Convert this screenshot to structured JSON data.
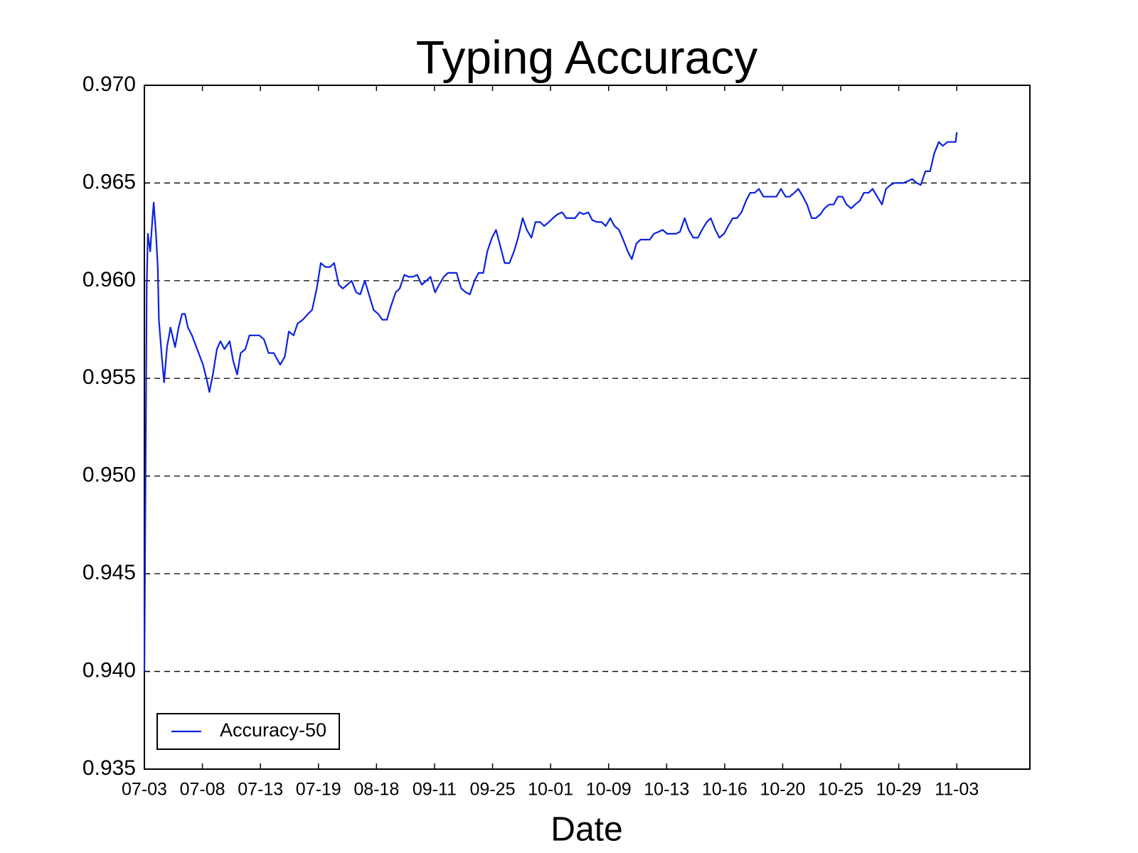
{
  "chart_data": {
    "type": "line",
    "title": "Typing Accuracy",
    "x_label": "Date",
    "xlim": [
      0,
      1526
    ],
    "xticks": [
      {
        "value": 0,
        "label": "07-03"
      },
      {
        "value": 100,
        "label": "07-08"
      },
      {
        "value": 200,
        "label": "07-13"
      },
      {
        "value": 300,
        "label": "07-19"
      },
      {
        "value": 400,
        "label": "08-18"
      },
      {
        "value": 500,
        "label": "09-11"
      },
      {
        "value": 600,
        "label": "09-25"
      },
      {
        "value": 700,
        "label": "10-01"
      },
      {
        "value": 800,
        "label": "10-09"
      },
      {
        "value": 900,
        "label": "10-13"
      },
      {
        "value": 1000,
        "label": "10-16"
      },
      {
        "value": 1100,
        "label": "10-20"
      },
      {
        "value": 1200,
        "label": "10-25"
      },
      {
        "value": 1300,
        "label": "10-29"
      },
      {
        "value": 1400,
        "label": "11-03"
      }
    ],
    "ylim": [
      0.935,
      0.97
    ],
    "yticks": [
      0.935,
      {
        "value": 0.94,
        "label": "0.940"
      },
      0.945,
      {
        "value": 0.95,
        "label": "0.950"
      },
      0.955,
      {
        "value": 0.96,
        "label": "0.960"
      },
      0.965,
      {
        "value": 0.97,
        "label": "0.970"
      }
    ],
    "grid": true,
    "legend": "lower left",
    "x": [
      0,
      4,
      6,
      10,
      14,
      16,
      20,
      23,
      25,
      30,
      34,
      39,
      45,
      53,
      59,
      65,
      70,
      75,
      82,
      91,
      101,
      107,
      112,
      118,
      125,
      131,
      138,
      147,
      153,
      160,
      166,
      174,
      181,
      189,
      198,
      206,
      214,
      223,
      234,
      242,
      249,
      257,
      264,
      273,
      282,
      289,
      297,
      304,
      312,
      320,
      327,
      335,
      342,
      350,
      357,
      365,
      372,
      380,
      387,
      395,
      403,
      410,
      418,
      425,
      433,
      440,
      448,
      455,
      463,
      470,
      478,
      486,
      493,
      501,
      508,
      516,
      523,
      531,
      538,
      546,
      554,
      561,
      569,
      576,
      584,
      591,
      599,
      606,
      614,
      621,
      629,
      637,
      644,
      652,
      659,
      667,
      674,
      682,
      689,
      697,
      704,
      712,
      720,
      727,
      735,
      742,
      750,
      757,
      765,
      772,
      780,
      788,
      795,
      803,
      810,
      818,
      825,
      833,
      840,
      848,
      855,
      863,
      871,
      878,
      886,
      893,
      901,
      908,
      916,
      923,
      931,
      938,
      946,
      954,
      961,
      969,
      976,
      984,
      991,
      999,
      1006,
      1014,
      1021,
      1029,
      1037,
      1044,
      1052,
      1059,
      1067,
      1074,
      1082,
      1089,
      1097,
      1105,
      1112,
      1120,
      1127,
      1135,
      1142,
      1150,
      1157,
      1165,
      1172,
      1180,
      1188,
      1195,
      1203,
      1210,
      1218,
      1225,
      1233,
      1240,
      1248,
      1255,
      1263,
      1271,
      1278,
      1286,
      1293,
      1301,
      1308,
      1316,
      1323,
      1331,
      1338,
      1346,
      1354,
      1361,
      1369,
      1376,
      1384,
      1391,
      1398,
      1400
    ],
    "series": [
      {
        "name": "Accuracy-50",
        "color": "#0a22e0",
        "values": [
          0.94,
          0.9598,
          0.9624,
          0.9615,
          0.9632,
          0.964,
          0.9624,
          0.9607,
          0.958,
          0.9561,
          0.9548,
          0.9566,
          0.9576,
          0.9566,
          0.9576,
          0.9583,
          0.9583,
          0.9576,
          0.9572,
          0.9565,
          0.9557,
          0.955,
          0.9543,
          0.9552,
          0.9565,
          0.9569,
          0.9565,
          0.9569,
          0.9559,
          0.9552,
          0.9563,
          0.9565,
          0.9572,
          0.9572,
          0.9572,
          0.957,
          0.9563,
          0.9563,
          0.9557,
          0.9561,
          0.9574,
          0.9572,
          0.9578,
          0.958,
          0.9583,
          0.9585,
          0.9596,
          0.9609,
          0.9607,
          0.9607,
          0.9609,
          0.9598,
          0.9596,
          0.9598,
          0.96,
          0.9594,
          0.9593,
          0.96,
          0.9593,
          0.9585,
          0.9583,
          0.958,
          0.958,
          0.9587,
          0.9594,
          0.9596,
          0.9603,
          0.9602,
          0.9602,
          0.9603,
          0.9598,
          0.96,
          0.9602,
          0.9594,
          0.9598,
          0.9602,
          0.9604,
          0.9604,
          0.9604,
          0.9596,
          0.9594,
          0.9593,
          0.96,
          0.9604,
          0.9604,
          0.9615,
          0.9622,
          0.9626,
          0.9617,
          0.9609,
          0.9609,
          0.9615,
          0.9622,
          0.9632,
          0.9626,
          0.9622,
          0.963,
          0.963,
          0.9628,
          0.963,
          0.9632,
          0.9634,
          0.9635,
          0.9632,
          0.9632,
          0.9632,
          0.9635,
          0.9634,
          0.9635,
          0.9631,
          0.963,
          0.963,
          0.9628,
          0.9632,
          0.9628,
          0.9626,
          0.9621,
          0.9615,
          0.9611,
          0.9619,
          0.9621,
          0.9621,
          0.9621,
          0.9624,
          0.9625,
          0.9626,
          0.9624,
          0.9624,
          0.9624,
          0.9625,
          0.9632,
          0.9626,
          0.9622,
          0.9622,
          0.9626,
          0.963,
          0.9632,
          0.9626,
          0.9622,
          0.9624,
          0.9628,
          0.9632,
          0.9632,
          0.9635,
          0.9641,
          0.9645,
          0.9645,
          0.9647,
          0.9643,
          0.9643,
          0.9643,
          0.9643,
          0.9647,
          0.9643,
          0.9643,
          0.9645,
          0.9647,
          0.9643,
          0.9639,
          0.9632,
          0.9632,
          0.9634,
          0.9637,
          0.9639,
          0.9639,
          0.9643,
          0.9643,
          0.9639,
          0.9637,
          0.9639,
          0.9641,
          0.9645,
          0.9645,
          0.9647,
          0.9643,
          0.9639,
          0.9647,
          0.9649,
          0.965,
          0.965,
          0.965,
          0.9651,
          0.9652,
          0.965,
          0.9649,
          0.9656,
          0.9656,
          0.9665,
          0.9671,
          0.9669,
          0.9671,
          0.9671,
          0.9671,
          0.9676
        ]
      }
    ]
  }
}
